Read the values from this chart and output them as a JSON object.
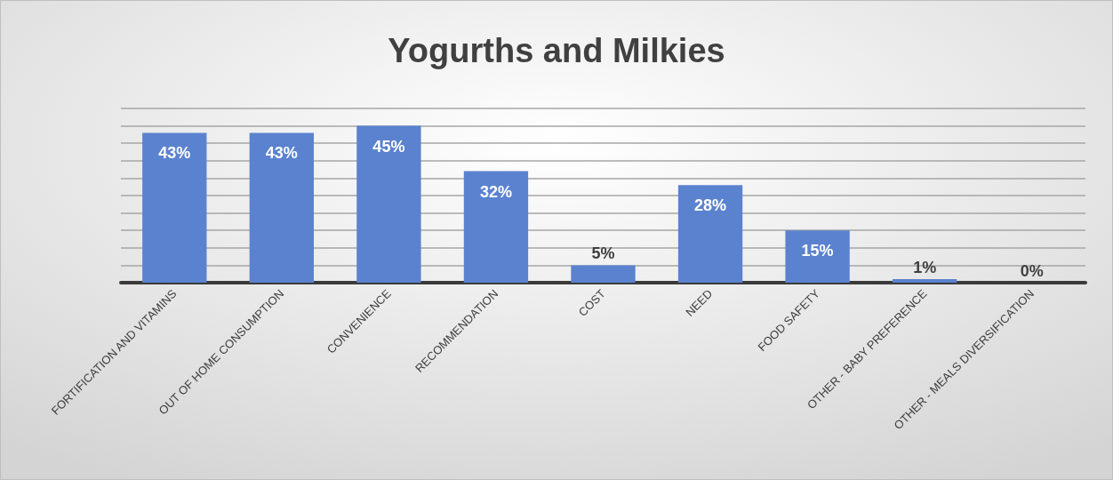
{
  "chart_data": {
    "type": "bar",
    "title": "Yogurths and Milkies",
    "categories": [
      "FORTIFICATION AND VITAMINS",
      "OUT OF HOME CONSUMPTION",
      "CONVENIENCE",
      "RECOMMENDATION",
      "COST",
      "NEED",
      "FOOD SAFETY",
      "OTHER - BABY PREFERENCE",
      "OTHER - MEALS DIVERSIFICATION"
    ],
    "values": [
      43,
      43,
      45,
      32,
      5,
      28,
      15,
      1,
      0
    ],
    "value_labels": [
      "43%",
      "43%",
      "45%",
      "32%",
      "5%",
      "28%",
      "15%",
      "1%",
      "0%"
    ],
    "color": "#5b82cf",
    "ylim": [
      0,
      50
    ],
    "yticks": [
      {
        "value": 0,
        "label": null
      },
      {
        "value": 5,
        "label": null
      },
      {
        "value": 10,
        "label": null
      },
      {
        "value": 15,
        "label": null
      },
      {
        "value": 20,
        "label": null
      },
      {
        "value": 25,
        "label": null
      },
      {
        "value": 30,
        "label": null
      },
      {
        "value": 35,
        "label": null
      },
      {
        "value": 40,
        "label": null
      },
      {
        "value": 45,
        "label": null
      },
      {
        "value": 50,
        "label": null
      }
    ],
    "tick_labels": "x",
    "grid": "y"
  }
}
